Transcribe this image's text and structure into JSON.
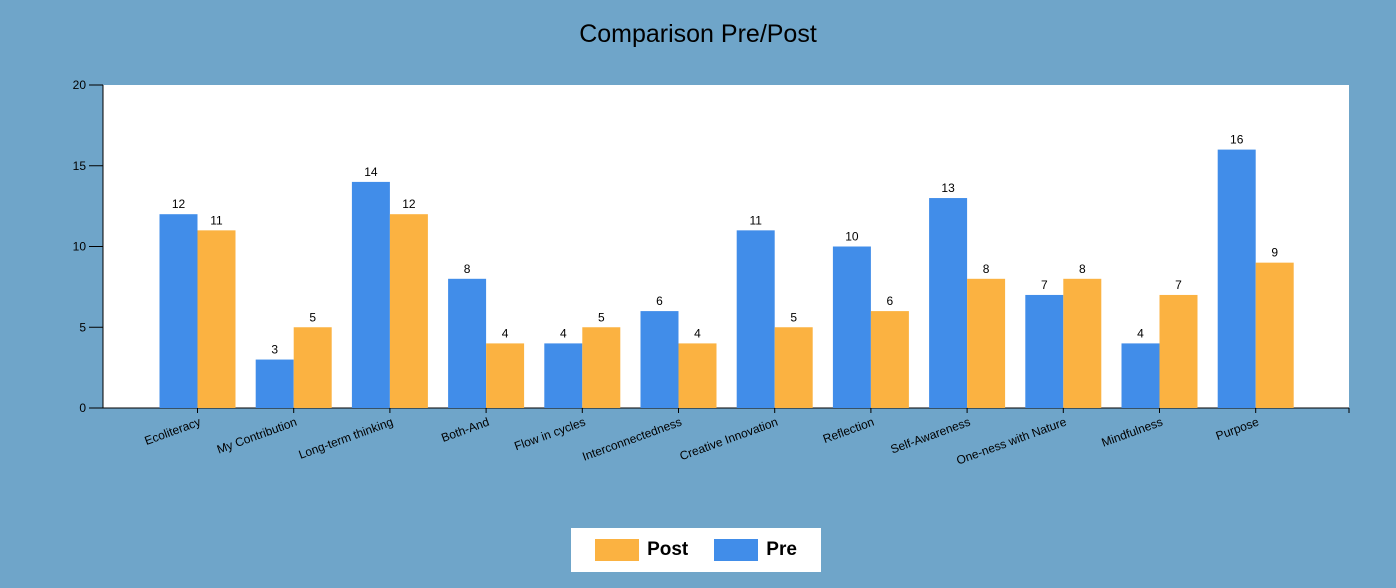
{
  "chart_data": {
    "type": "bar",
    "title": "Comparison Pre/Post",
    "categories": [
      "Ecoliteracy",
      "My Contribution",
      "Long-term thinking",
      "Both-And",
      "Flow in cycles",
      "Interconnectedness",
      "Creative Innovation",
      "Reflection",
      "Self-Awareness",
      "One-ness with Nature",
      "Mindfulness",
      "Purpose"
    ],
    "series": [
      {
        "name": "Pre",
        "color": "#418de9",
        "values": [
          12,
          3,
          14,
          8,
          4,
          6,
          11,
          10,
          13,
          7,
          4,
          16
        ]
      },
      {
        "name": "Post",
        "color": "#fbb241",
        "values": [
          11,
          5,
          12,
          4,
          5,
          4,
          5,
          6,
          8,
          8,
          7,
          9
        ]
      }
    ],
    "ylim": [
      0,
      20
    ],
    "yticks": [
      0,
      5,
      10,
      15,
      20
    ],
    "data_labels": true,
    "grid": false,
    "legend": {
      "position": "bottom",
      "entries": [
        {
          "label": "Post",
          "color": "#fbb241"
        },
        {
          "label": "Pre",
          "color": "#418de9"
        }
      ]
    }
  }
}
